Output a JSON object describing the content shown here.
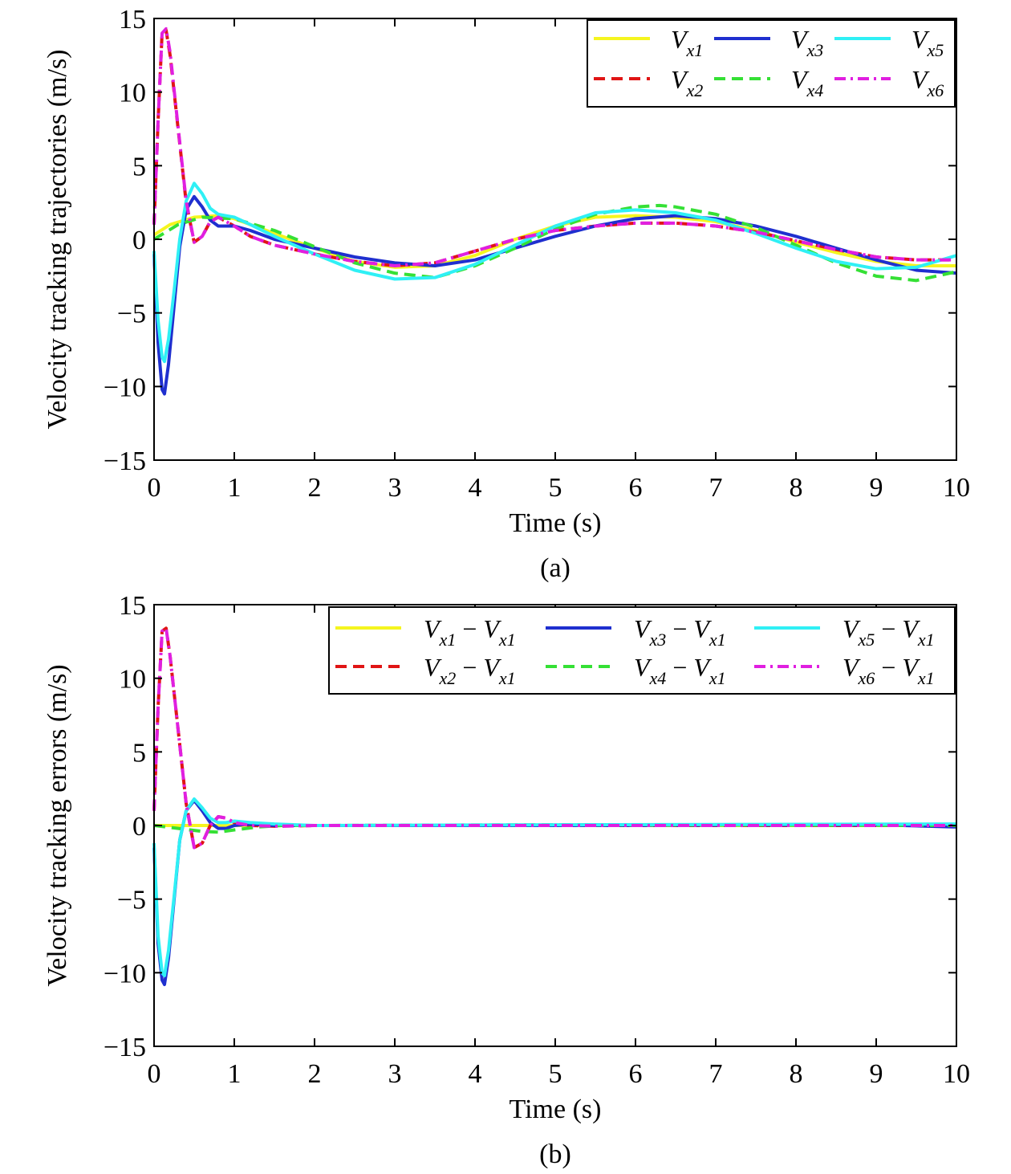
{
  "colors": {
    "yellow": "#f5f51f",
    "blue": "#1f2fcf",
    "cyan": "#2ff0f5",
    "red": "#e01515",
    "green": "#35e035",
    "magenta": "#e01fe0"
  },
  "chart_data": [
    {
      "type": "line",
      "caption": "(a)",
      "xlabel": "Time (s)",
      "ylabel": "Velocity tracking trajectories (m/s)",
      "xlim": [
        0,
        10
      ],
      "ylim": [
        -15,
        15
      ],
      "xticks": [
        0,
        1,
        2,
        3,
        4,
        5,
        6,
        7,
        8,
        9,
        10
      ],
      "yticks": [
        15,
        10,
        5,
        0,
        -5,
        -10,
        -15
      ],
      "ytick_labels": [
        "15",
        "10",
        "5",
        "0",
        "−5",
        "−10",
        "−15"
      ],
      "legend_position": "top-right",
      "series": [
        {
          "name": "V_x1",
          "label_main": "V",
          "label_sub": "x1",
          "color": "yellow",
          "dash": "solid",
          "x": [
            0,
            0.2,
            0.5,
            0.8,
            1,
            1.5,
            2,
            2.5,
            3,
            3.5,
            4,
            4.5,
            5,
            5.5,
            6,
            6.5,
            7,
            7.5,
            8,
            8.5,
            9,
            9.5,
            10
          ],
          "y": [
            0.3,
            1.0,
            1.5,
            1.6,
            1.4,
            0.4,
            -0.6,
            -1.5,
            -1.9,
            -1.8,
            -1.1,
            0.0,
            0.9,
            1.5,
            1.6,
            1.5,
            1.2,
            0.6,
            -0.2,
            -0.9,
            -1.5,
            -1.8,
            -1.8
          ]
        },
        {
          "name": "V_x2",
          "label_main": "V",
          "label_sub": "x2",
          "color": "red",
          "dash": "dashed",
          "x": [
            0,
            0.05,
            0.1,
            0.15,
            0.2,
            0.3,
            0.4,
            0.5,
            0.6,
            0.7,
            0.8,
            0.9,
            1,
            1.2,
            1.5,
            2,
            2.5,
            3,
            3.5,
            4,
            4.5,
            5,
            5.5,
            6,
            6.5,
            7,
            7.5,
            8,
            8.5,
            9,
            9.5,
            10
          ],
          "y": [
            1,
            8,
            14,
            14.2,
            12.5,
            7.5,
            2.5,
            -0.2,
            0.2,
            1.2,
            1.5,
            1.2,
            0.9,
            0.2,
            -0.4,
            -1.0,
            -1.5,
            -1.8,
            -1.6,
            -0.8,
            0.0,
            0.6,
            0.9,
            1.1,
            1.1,
            0.9,
            0.5,
            -0.1,
            -0.7,
            -1.2,
            -1.4,
            -1.4
          ]
        },
        {
          "name": "V_x3",
          "label_main": "V",
          "label_sub": "x3",
          "color": "blue",
          "dash": "solid",
          "x": [
            0,
            0.05,
            0.1,
            0.13,
            0.18,
            0.25,
            0.32,
            0.4,
            0.5,
            0.6,
            0.7,
            0.8,
            0.9,
            1,
            1.2,
            1.5,
            2,
            2.5,
            3,
            3.5,
            4,
            4.5,
            5,
            5.5,
            6,
            6.5,
            7,
            7.5,
            8,
            8.5,
            9,
            9.5,
            10
          ],
          "y": [
            -1,
            -7,
            -10.2,
            -10.5,
            -8.5,
            -4.5,
            -0.5,
            2.0,
            2.9,
            2.2,
            1.3,
            0.9,
            0.9,
            0.9,
            0.6,
            0.0,
            -0.6,
            -1.2,
            -1.6,
            -1.8,
            -1.4,
            -0.6,
            0.2,
            0.9,
            1.4,
            1.6,
            1.4,
            0.9,
            0.2,
            -0.6,
            -1.4,
            -2.1,
            -2.3
          ]
        },
        {
          "name": "V_x4",
          "label_main": "V",
          "label_sub": "x4",
          "color": "green",
          "dash": "dashed",
          "x": [
            0,
            0.3,
            0.6,
            1,
            1.5,
            2,
            2.5,
            3,
            3.5,
            4,
            4.5,
            5,
            5.5,
            6,
            6.3,
            6.5,
            7,
            7.5,
            8,
            8.5,
            9,
            9.5,
            10
          ],
          "y": [
            0,
            1.0,
            1.5,
            1.4,
            0.6,
            -0.5,
            -1.6,
            -2.3,
            -2.6,
            -1.8,
            -0.6,
            0.7,
            1.7,
            2.2,
            2.3,
            2.2,
            1.7,
            0.8,
            -0.4,
            -1.6,
            -2.5,
            -2.8,
            -2.2
          ]
        },
        {
          "name": "V_x5",
          "label_main": "V",
          "label_sub": "x5",
          "color": "cyan",
          "dash": "solid",
          "x": [
            0,
            0.05,
            0.1,
            0.13,
            0.18,
            0.25,
            0.32,
            0.4,
            0.5,
            0.6,
            0.7,
            0.8,
            0.9,
            1,
            1.2,
            1.5,
            2,
            2.5,
            3,
            3.5,
            4,
            4.5,
            5,
            5.5,
            6,
            6.5,
            7,
            7.5,
            8,
            8.5,
            9,
            9.5,
            10
          ],
          "y": [
            -0.8,
            -5.5,
            -8.0,
            -8.3,
            -6.8,
            -3.5,
            0.0,
            2.6,
            3.8,
            3.1,
            2.1,
            1.7,
            1.6,
            1.5,
            1.0,
            0.2,
            -1.0,
            -2.1,
            -2.7,
            -2.6,
            -1.7,
            -0.4,
            0.9,
            1.8,
            2.0,
            1.8,
            1.3,
            0.4,
            -0.6,
            -1.5,
            -2.0,
            -1.9,
            -1.1
          ]
        },
        {
          "name": "V_x6",
          "label_main": "V",
          "label_sub": "x6",
          "color": "magenta",
          "dash": "dashdot",
          "x": [
            0,
            0.05,
            0.1,
            0.15,
            0.2,
            0.3,
            0.4,
            0.5,
            0.6,
            0.7,
            0.8,
            0.9,
            1,
            1.2,
            1.5,
            2,
            2.5,
            3,
            3.5,
            4,
            4.5,
            5,
            5.5,
            6,
            6.5,
            7,
            7.5,
            8,
            8.5,
            9,
            9.5,
            10
          ],
          "y": [
            1,
            8,
            14,
            14.3,
            12.7,
            7.6,
            2.6,
            -0.2,
            0.2,
            1.2,
            1.5,
            1.2,
            0.9,
            0.2,
            -0.4,
            -1.0,
            -1.5,
            -1.8,
            -1.6,
            -0.8,
            0.0,
            0.6,
            0.9,
            1.1,
            1.1,
            0.9,
            0.5,
            -0.1,
            -0.7,
            -1.2,
            -1.4,
            -1.4
          ]
        }
      ]
    },
    {
      "type": "line",
      "caption": "(b)",
      "xlabel": "Time (s)",
      "ylabel": "Velocity tracking errors (m/s)",
      "xlim": [
        0,
        10
      ],
      "ylim": [
        -15,
        15
      ],
      "xticks": [
        0,
        1,
        2,
        3,
        4,
        5,
        6,
        7,
        8,
        9,
        10
      ],
      "yticks": [
        15,
        10,
        5,
        0,
        -5,
        -10,
        -15
      ],
      "ytick_labels": [
        "15",
        "10",
        "5",
        "0",
        "−5",
        "−10",
        "−15"
      ],
      "legend_position": "top-right",
      "legend_minus": "−",
      "series": [
        {
          "name": "V_x1 − V_x1",
          "label_main": "V",
          "label_sub": "x1",
          "color": "yellow",
          "dash": "solid",
          "x": [
            0,
            10
          ],
          "y": [
            0,
            0
          ]
        },
        {
          "name": "V_x2 − V_x1",
          "label_main": "V",
          "label_sub": "x2",
          "color": "red",
          "dash": "dashed",
          "x": [
            0,
            0.05,
            0.1,
            0.15,
            0.2,
            0.3,
            0.4,
            0.5,
            0.6,
            0.7,
            0.8,
            0.9,
            1,
            1.2,
            1.5,
            2,
            10
          ],
          "y": [
            1,
            8,
            13.2,
            13.4,
            11.5,
            6.5,
            1.5,
            -1.5,
            -1.2,
            0.0,
            0.6,
            0.5,
            0.2,
            0.0,
            -0.05,
            0,
            0
          ]
        },
        {
          "name": "V_x3 − V_x1",
          "label_main": "V",
          "label_sub": "x3",
          "color": "blue",
          "dash": "solid",
          "x": [
            0,
            0.05,
            0.1,
            0.13,
            0.18,
            0.25,
            0.32,
            0.4,
            0.5,
            0.6,
            0.7,
            0.8,
            0.9,
            1,
            1.2,
            1.5,
            2,
            5,
            9,
            10
          ],
          "y": [
            -1.5,
            -8,
            -10.5,
            -10.8,
            -9.0,
            -5.0,
            -1.0,
            1.0,
            1.7,
            1.0,
            0.2,
            -0.2,
            -0.2,
            0.0,
            0.1,
            0.0,
            0.0,
            0.0,
            0.05,
            -0.1
          ]
        },
        {
          "name": "V_x4 − V_x1",
          "label_main": "V",
          "label_sub": "x4",
          "color": "green",
          "dash": "dashed",
          "x": [
            0,
            0.3,
            0.6,
            0.8,
            1,
            1.3,
            1.6,
            2,
            5,
            10
          ],
          "y": [
            0,
            -0.2,
            -0.4,
            -0.45,
            -0.3,
            -0.1,
            0.0,
            0.0,
            0.05,
            0.0
          ]
        },
        {
          "name": "V_x5 − V_x1",
          "label_main": "V",
          "label_sub": "x5",
          "color": "cyan",
          "dash": "solid",
          "x": [
            0,
            0.05,
            0.1,
            0.13,
            0.18,
            0.25,
            0.32,
            0.4,
            0.5,
            0.6,
            0.7,
            0.8,
            0.9,
            1,
            1.2,
            1.5,
            2,
            5,
            10
          ],
          "y": [
            -1.2,
            -7.5,
            -10.0,
            -10.2,
            -8.5,
            -4.8,
            -1.0,
            1.0,
            1.8,
            1.2,
            0.5,
            0.2,
            0.2,
            0.3,
            0.2,
            0.1,
            0.0,
            0.05,
            0.1
          ]
        },
        {
          "name": "V_x6 − V_x1",
          "label_main": "V",
          "label_sub": "x6",
          "color": "magenta",
          "dash": "dashdot",
          "x": [
            0,
            0.05,
            0.1,
            0.15,
            0.2,
            0.3,
            0.4,
            0.5,
            0.6,
            0.7,
            0.8,
            0.9,
            1,
            1.2,
            1.5,
            2,
            10
          ],
          "y": [
            1,
            8,
            13.2,
            13.4,
            11.5,
            6.5,
            1.5,
            -1.5,
            -1.2,
            0.0,
            0.6,
            0.5,
            0.2,
            0.0,
            -0.05,
            0,
            0
          ]
        }
      ]
    }
  ]
}
